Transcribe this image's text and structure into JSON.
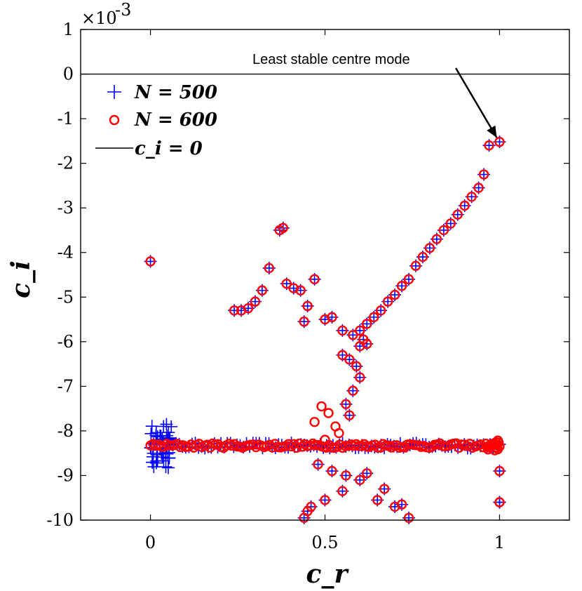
{
  "chart_data": {
    "type": "scatter",
    "xlabel": "c_r",
    "ylabel": "c_i",
    "xlim": [
      -0.2,
      1.2
    ],
    "ylim": [
      -10,
      1
    ],
    "y_scale_label": "×10",
    "y_scale_exponent": "-3",
    "xticks": [
      0,
      0.5,
      1
    ],
    "xtick_labels": [
      "0",
      "0.5",
      "1"
    ],
    "yticks": [
      1,
      0,
      -1,
      -2,
      -3,
      -4,
      -5,
      -6,
      -7,
      -8,
      -9,
      -10
    ],
    "ytick_labels": [
      "1",
      "0",
      "-1",
      "-2",
      "-3",
      "-4",
      "-5",
      "-6",
      "-7",
      "-8",
      "-9",
      "-10"
    ],
    "grid": false,
    "legend_position": "top-left",
    "annotation": {
      "text": "Least stable centre mode",
      "x": 1.0,
      "y": -1.52
    },
    "reference_line": {
      "label": "c_i = 0",
      "y": 0,
      "color": "#000000"
    },
    "legend": [
      {
        "name": "N = 500",
        "color": "#0000ff",
        "marker": "plus"
      },
      {
        "name": "N = 600",
        "color": "#ff0000",
        "marker": "circle"
      },
      {
        "name": "c_i = 0",
        "color": "#000000",
        "marker": "line"
      }
    ],
    "series": [
      {
        "name": "N = 500",
        "color": "#0000ff",
        "marker": "plus",
        "x": [
          1.0,
          0.97,
          0.955,
          0.94,
          0.92,
          0.9,
          0.88,
          0.86,
          0.84,
          0.82,
          0.8,
          0.78,
          0.76,
          0.74,
          0.72,
          0.7,
          0.68,
          0.66,
          0.64,
          0.62,
          0.6,
          0.0,
          0.24,
          0.26,
          0.28,
          0.3,
          0.32,
          0.34,
          0.37,
          0.38,
          0.39,
          0.41,
          0.43,
          0.44,
          0.47,
          0.45,
          0.5,
          0.52,
          0.55,
          0.58,
          0.6,
          0.61,
          0.62,
          0.55,
          0.57,
          0.59,
          0.6,
          0.58,
          0.56,
          0.57,
          1.0,
          1.0,
          1.0,
          0.45,
          0.5,
          0.55,
          0.6,
          0.65,
          0.7,
          0.74,
          0.48,
          0.52,
          0.56,
          0.62,
          0.67,
          0.72,
          0.44,
          0.46
        ],
        "y": [
          -1.52,
          -1.6,
          -2.25,
          -2.55,
          -2.75,
          -2.95,
          -3.15,
          -3.35,
          -3.5,
          -3.7,
          -3.9,
          -4.1,
          -4.3,
          -4.6,
          -4.75,
          -4.95,
          -5.1,
          -5.3,
          -5.45,
          -5.6,
          -5.75,
          -4.2,
          -5.3,
          -5.3,
          -5.25,
          -5.1,
          -4.85,
          -4.35,
          -3.5,
          -3.45,
          -4.7,
          -4.8,
          -4.85,
          -5.55,
          -4.6,
          -5.2,
          -5.5,
          -5.45,
          -5.75,
          -5.85,
          -6.1,
          -5.95,
          -6.05,
          -6.3,
          -6.4,
          -6.55,
          -6.8,
          -7.1,
          -7.4,
          -7.65,
          -8.9,
          -9.6,
          -9.6,
          -9.8,
          -9.55,
          -9.35,
          -9.1,
          -9.55,
          -9.7,
          -9.95,
          -8.75,
          -8.9,
          -9.0,
          -8.95,
          -9.3,
          -9.65,
          -9.95,
          -9.7
        ],
        "band": {
          "x_range": [
            0.0,
            1.0
          ],
          "y_center": -8.33,
          "y_spread": 0.06,
          "count": 110,
          "lobe_x_range": [
            0.0,
            0.06
          ],
          "lobe_y_spread": 0.5,
          "lobe_count": 44
        }
      },
      {
        "name": "N = 600",
        "color": "#ff0000",
        "marker": "circle",
        "x": [
          1.0,
          0.97,
          0.955,
          0.94,
          0.92,
          0.9,
          0.88,
          0.86,
          0.84,
          0.82,
          0.8,
          0.78,
          0.76,
          0.74,
          0.72,
          0.7,
          0.68,
          0.66,
          0.64,
          0.62,
          0.6,
          0.0,
          0.24,
          0.26,
          0.28,
          0.3,
          0.32,
          0.34,
          0.37,
          0.38,
          0.39,
          0.41,
          0.43,
          0.44,
          0.47,
          0.45,
          0.5,
          0.52,
          0.55,
          0.58,
          0.6,
          0.61,
          0.62,
          0.55,
          0.57,
          0.59,
          0.6,
          0.58,
          0.56,
          0.57,
          1.0,
          1.0,
          1.0,
          0.45,
          0.5,
          0.55,
          0.6,
          0.65,
          0.7,
          0.74,
          0.48,
          0.52,
          0.56,
          0.62,
          0.67,
          0.72,
          0.44,
          0.46,
          0.49,
          0.51,
          0.53,
          0.47,
          0.54,
          0.5
        ],
        "y": [
          -1.52,
          -1.6,
          -2.25,
          -2.55,
          -2.75,
          -2.95,
          -3.15,
          -3.35,
          -3.5,
          -3.7,
          -3.9,
          -4.1,
          -4.3,
          -4.6,
          -4.75,
          -4.95,
          -5.1,
          -5.3,
          -5.45,
          -5.6,
          -5.75,
          -4.2,
          -5.3,
          -5.3,
          -5.25,
          -5.1,
          -4.85,
          -4.35,
          -3.5,
          -3.45,
          -4.7,
          -4.8,
          -4.85,
          -5.55,
          -4.6,
          -5.2,
          -5.5,
          -5.45,
          -5.75,
          -5.85,
          -6.1,
          -5.95,
          -6.05,
          -6.3,
          -6.4,
          -6.55,
          -6.8,
          -7.1,
          -7.4,
          -7.65,
          -8.9,
          -9.6,
          -9.6,
          -9.8,
          -9.55,
          -9.35,
          -9.1,
          -9.55,
          -9.7,
          -9.95,
          -8.75,
          -8.9,
          -9.0,
          -8.95,
          -9.3,
          -9.65,
          -9.95,
          -9.7,
          -7.45,
          -7.6,
          -7.9,
          -7.8,
          -8.05,
          -8.2
        ],
        "band": {
          "x_range": [
            0.0,
            1.0
          ],
          "y_center": -8.33,
          "y_spread": 0.05,
          "count": 130,
          "lobe_x_range": [
            0.96,
            1.0
          ],
          "lobe_y_spread": 0.12,
          "lobe_count": 14
        }
      }
    ]
  }
}
